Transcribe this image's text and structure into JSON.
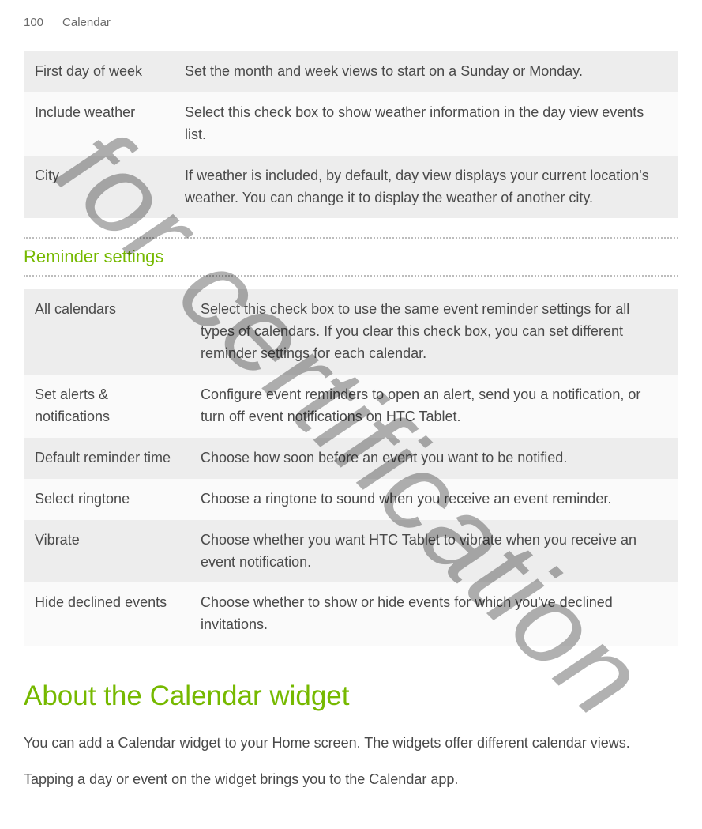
{
  "header": {
    "page_number": "100",
    "chapter": "Calendar"
  },
  "watermark": {
    "text": "for certification"
  },
  "settings_table_1": {
    "rows": [
      {
        "label": "First day of week",
        "desc": "Set the month and week views to start on a Sunday or Monday."
      },
      {
        "label": "Include weather",
        "desc": "Select this check box to show weather information in the day view events list."
      },
      {
        "label": "City",
        "desc": "If weather is included, by default, day view displays your current location's weather. You can change it to display the weather of another city."
      }
    ]
  },
  "reminder_section": {
    "heading": "Reminder settings",
    "rows": [
      {
        "label": "All calendars",
        "desc": "Select this check box to use the same event reminder settings for all types of calendars. If you clear this check box, you can set different reminder settings for each calendar."
      },
      {
        "label": "Set alerts & notifications",
        "desc": "Configure event reminders to open an alert, send you a notification, or turn off event notifications on HTC Tablet."
      },
      {
        "label": "Default reminder time",
        "desc": "Choose how soon before an event you want to be notified."
      },
      {
        "label": "Select ringtone",
        "desc": "Choose a ringtone to sound when you receive an event reminder."
      },
      {
        "label": "Vibrate",
        "desc": "Choose whether you want HTC Tablet to vibrate when you receive an event notification."
      },
      {
        "label": "Hide declined events",
        "desc": "Choose whether to show or hide events for which you've declined invitations."
      }
    ]
  },
  "widget_section": {
    "heading": "About the Calendar widget",
    "p1": "You can add a Calendar widget to your Home screen. The widgets offer different calendar views.",
    "p2": "Tapping a day or event on the widget brings you to the Calendar app."
  }
}
